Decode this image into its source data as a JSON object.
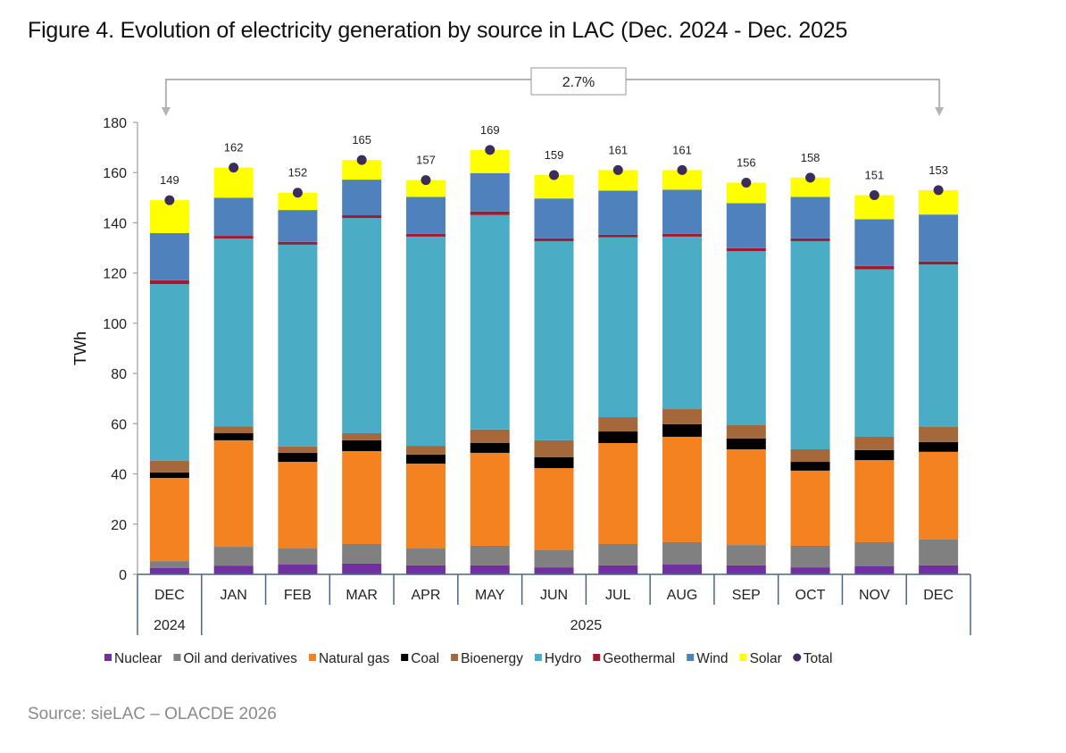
{
  "figure": {
    "title": "Figure 4. Evolution of electricity generation by source in LAC (Dec. 2024 - Dec. 2025",
    "source": "Source: sieLAC – OLACDE 2026"
  },
  "chart_data": {
    "type": "bar",
    "stacked": true,
    "title": "Figure 4. Evolution of electricity generation by source in LAC (Dec. 2024 - Dec. 2025",
    "xlabel": "",
    "ylabel": "TWh",
    "ylim": [
      0,
      180
    ],
    "yticks": [
      0,
      20,
      40,
      60,
      80,
      100,
      120,
      140,
      160,
      180
    ],
    "grid": false,
    "legend_position": "bottom",
    "categories": [
      "DEC",
      "JAN",
      "FEB",
      "MAR",
      "APR",
      "MAY",
      "JUN",
      "JUL",
      "AUG",
      "SEP",
      "OCT",
      "NOV",
      "DEC"
    ],
    "category_groups": [
      {
        "label": "2024",
        "span": 1
      },
      {
        "label": "2025",
        "span": 12
      }
    ],
    "series": [
      {
        "name": "Nuclear",
        "color": "#7030A0",
        "values": [
          2.5,
          3.5,
          3.9,
          4.3,
          3.6,
          3.6,
          2.8,
          3.6,
          3.9,
          3.6,
          2.8,
          3.2,
          3.6
        ]
      },
      {
        "name": "Oil and derivatives",
        "color": "#808080",
        "values": [
          2.8,
          7.5,
          6.4,
          7.8,
          6.7,
          7.8,
          6.8,
          8.5,
          8.9,
          8.1,
          8.6,
          9.6,
          10.3
        ]
      },
      {
        "name": "Natural gas",
        "color": "#F58220",
        "values": [
          33.1,
          42.4,
          34.5,
          37.0,
          33.8,
          37.0,
          32.7,
          40.2,
          42.0,
          38.1,
          29.9,
          32.7,
          34.9
        ]
      },
      {
        "name": "Coal",
        "color": "#000000",
        "values": [
          2.2,
          2.8,
          3.6,
          4.3,
          3.6,
          3.9,
          4.3,
          4.6,
          5.0,
          4.3,
          3.5,
          4.0,
          3.9
        ]
      },
      {
        "name": "Bioenergy",
        "color": "#A5683A",
        "values": [
          4.6,
          2.8,
          2.5,
          2.8,
          3.5,
          5.4,
          6.8,
          5.7,
          6.0,
          5.3,
          5.0,
          5.3,
          6.0
        ]
      },
      {
        "name": "Hydro",
        "color": "#4BACC6",
        "values": [
          70.4,
          74.7,
          80.4,
          85.7,
          83.3,
          85.4,
          79.3,
          71.6,
          68.7,
          69.3,
          82.9,
          66.7,
          64.7
        ]
      },
      {
        "name": "Geothermal",
        "color": "#A01C2C",
        "values": [
          1.5,
          1.1,
          1.1,
          1.1,
          1.1,
          1.4,
          1.1,
          1.0,
          1.1,
          1.2,
          1.1,
          1.3,
          1.2
        ]
      },
      {
        "name": "Wind",
        "color": "#4F81BD",
        "values": [
          18.8,
          15.2,
          12.7,
          14.2,
          14.7,
          15.3,
          15.9,
          17.6,
          17.6,
          17.9,
          16.5,
          18.6,
          18.7
        ]
      },
      {
        "name": "Solar",
        "color": "#FFFF00",
        "values": [
          13.1,
          12.0,
          6.9,
          7.8,
          6.7,
          9.2,
          9.3,
          8.2,
          7.8,
          8.2,
          7.7,
          9.6,
          9.7
        ]
      }
    ],
    "total": {
      "name": "Total",
      "color": "#3B2D5C",
      "values": [
        149,
        162,
        152,
        165,
        157,
        169,
        159,
        161,
        161,
        156,
        158,
        151,
        153
      ]
    },
    "annotation": {
      "text": "2.7%",
      "from_category": 0,
      "to_category": 12
    }
  }
}
